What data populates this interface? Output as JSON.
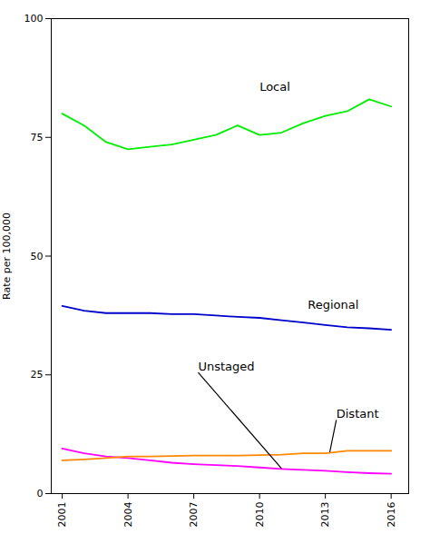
{
  "chart_data": {
    "type": "line",
    "x": [
      2001,
      2002,
      2003,
      2004,
      2005,
      2006,
      2007,
      2008,
      2009,
      2010,
      2011,
      2012,
      2013,
      2014,
      2015,
      2016
    ],
    "series": [
      {
        "name": "Local",
        "color": "#00ee00",
        "values": [
          80.0,
          77.5,
          74.0,
          72.5,
          73.0,
          73.5,
          74.5,
          75.5,
          77.5,
          75.5,
          76.0,
          78.0,
          79.5,
          80.5,
          83.0,
          81.5
        ]
      },
      {
        "name": "Regional",
        "color": "#0000cc",
        "values": [
          39.5,
          38.5,
          38.0,
          38.0,
          38.0,
          37.8,
          37.8,
          37.5,
          37.2,
          37.0,
          36.5,
          36.0,
          35.5,
          35.0,
          34.8,
          34.5
        ]
      },
      {
        "name": "Unstaged",
        "color": "#ff00ff",
        "values": [
          9.5,
          8.5,
          7.8,
          7.5,
          7.0,
          6.5,
          6.2,
          6.0,
          5.8,
          5.5,
          5.2,
          5.0,
          4.8,
          4.5,
          4.3,
          4.2
        ]
      },
      {
        "name": "Distant",
        "color": "#ff8800",
        "values": [
          7.0,
          7.2,
          7.5,
          7.8,
          7.8,
          7.9,
          8.0,
          8.0,
          8.0,
          8.1,
          8.2,
          8.5,
          8.5,
          9.0,
          9.0,
          9.0
        ]
      }
    ],
    "ylabel": "Rate per 100,000",
    "xlim": [
      2000.5,
      2016.8
    ],
    "xticks": [
      2001,
      2004,
      2007,
      2010,
      2013,
      2016
    ],
    "ylim": [
      0,
      100
    ],
    "yticks": [
      0,
      25,
      50,
      75,
      100
    ],
    "grid": false,
    "annotations": [
      {
        "text": "Local",
        "x": 2010.0,
        "y": 84.5
      },
      {
        "text": "Regional",
        "x": 2012.2,
        "y": 38.5
      },
      {
        "text": "Unstaged",
        "x": 2007.2,
        "y": 25.5,
        "arrow_to": [
          2011.0,
          5.3
        ]
      },
      {
        "text": "Distant",
        "x": 2013.5,
        "y": 15.5,
        "arrow_to": [
          2013.2,
          8.7
        ]
      }
    ]
  }
}
